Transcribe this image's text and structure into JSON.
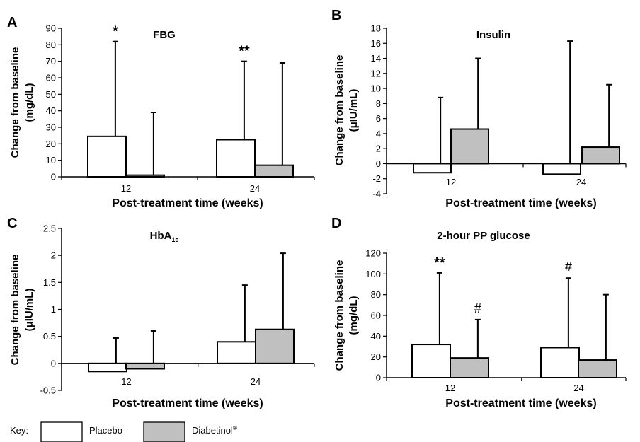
{
  "key": {
    "label": "Key:",
    "items": [
      {
        "name": "Placebo",
        "color": "#ffffff"
      },
      {
        "name": "Diabetinol",
        "sup": "®",
        "color": "#c0c0c0"
      }
    ]
  },
  "colors": {
    "placebo": "#ffffff",
    "diabetinol": "#c0c0c0",
    "stroke": "#000000"
  },
  "chart_data": [
    {
      "panel": "A",
      "type": "bar",
      "title": "FBG",
      "xlabel": "Post-treatment time (weeks)",
      "ylabel": [
        "Change from baseline",
        "(mg/dL)"
      ],
      "categories": [
        "12",
        "24"
      ],
      "ylim": [
        0,
        90
      ],
      "yticks": [
        0,
        10,
        20,
        30,
        40,
        50,
        60,
        70,
        80,
        90
      ],
      "series": [
        {
          "name": "Placebo",
          "values": [
            24.5,
            22.5
          ],
          "error_top": [
            82,
            70
          ]
        },
        {
          "name": "Diabetinol",
          "values": [
            1,
            7
          ],
          "error_top": [
            39,
            69
          ]
        }
      ],
      "annotations": [
        {
          "text": "*",
          "category": 0,
          "series": 0
        },
        {
          "text": "**",
          "category": 1,
          "series": 0
        }
      ]
    },
    {
      "panel": "B",
      "type": "bar",
      "title": "Insulin",
      "xlabel": "Post-treatment time (weeks)",
      "ylabel": [
        "Change from baseline",
        "(μIU/mL)"
      ],
      "categories": [
        "12",
        "24"
      ],
      "ylim": [
        -4,
        18
      ],
      "yticks": [
        -4,
        -2,
        0,
        2,
        4,
        6,
        8,
        10,
        12,
        14,
        16,
        18
      ],
      "series": [
        {
          "name": "Placebo",
          "values": [
            -1.2,
            -1.4
          ],
          "error_top": [
            8.8,
            16.3
          ]
        },
        {
          "name": "Diabetinol",
          "values": [
            4.6,
            2.2
          ],
          "error_top": [
            14,
            10.5
          ]
        }
      ],
      "annotations": []
    },
    {
      "panel": "C",
      "type": "bar",
      "title": "HbA",
      "title_sub": "1c",
      "xlabel": "Post-treatment time (weeks)",
      "ylabel": [
        "Change from baseline",
        "(μIU/mL)"
      ],
      "categories": [
        "12",
        "24"
      ],
      "ylim": [
        -0.5,
        2.5
      ],
      "yticks": [
        -0.5,
        0,
        0.5,
        1,
        1.5,
        2,
        2.5
      ],
      "series": [
        {
          "name": "Placebo",
          "values": [
            -0.15,
            0.4
          ],
          "error_top": [
            0.47,
            1.45
          ]
        },
        {
          "name": "Diabetinol",
          "values": [
            -0.1,
            0.63
          ],
          "error_top": [
            0.6,
            2.04
          ]
        }
      ],
      "annotations": []
    },
    {
      "panel": "D",
      "type": "bar",
      "title": "2-hour PP glucose",
      "xlabel": "Post-treatment time (weeks)",
      "ylabel": [
        "Change from baseline",
        "(mg/dL)"
      ],
      "categories": [
        "12",
        "24"
      ],
      "ylim": [
        0,
        120
      ],
      "yticks": [
        0,
        20,
        40,
        60,
        80,
        100,
        120
      ],
      "series": [
        {
          "name": "Placebo",
          "values": [
            32,
            29
          ],
          "error_top": [
            101,
            96
          ]
        },
        {
          "name": "Diabetinol",
          "values": [
            19,
            17
          ],
          "error_top": [
            56,
            80
          ]
        }
      ],
      "annotations": [
        {
          "text": "**",
          "category": 0,
          "series": 0
        },
        {
          "text": "#",
          "category": 0,
          "series": 1
        },
        {
          "text": "#",
          "category": 1,
          "series": 0
        }
      ]
    }
  ]
}
